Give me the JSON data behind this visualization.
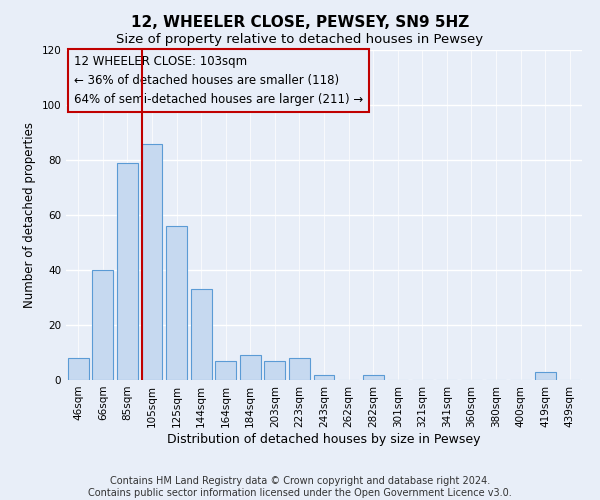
{
  "title": "12, WHEELER CLOSE, PEWSEY, SN9 5HZ",
  "subtitle": "Size of property relative to detached houses in Pewsey",
  "xlabel": "Distribution of detached houses by size in Pewsey",
  "ylabel": "Number of detached properties",
  "categories": [
    "46sqm",
    "66sqm",
    "85sqm",
    "105sqm",
    "125sqm",
    "144sqm",
    "164sqm",
    "184sqm",
    "203sqm",
    "223sqm",
    "243sqm",
    "262sqm",
    "282sqm",
    "301sqm",
    "321sqm",
    "341sqm",
    "360sqm",
    "380sqm",
    "400sqm",
    "419sqm",
    "439sqm"
  ],
  "values": [
    8,
    40,
    79,
    86,
    56,
    33,
    7,
    9,
    7,
    8,
    2,
    0,
    2,
    0,
    0,
    0,
    0,
    0,
    0,
    3,
    0
  ],
  "bar_color": "#c6d9f0",
  "bar_edge_color": "#5b9bd5",
  "vline_color": "#c00000",
  "vline_x_index": 3,
  "annotation_line1": "12 WHEELER CLOSE: 103sqm",
  "annotation_line2": "← 36% of detached houses are smaller (118)",
  "annotation_line3": "64% of semi-detached houses are larger (211) →",
  "box_edge_color": "#c00000",
  "ylim": [
    0,
    120
  ],
  "yticks": [
    0,
    20,
    40,
    60,
    80,
    100,
    120
  ],
  "footer_line1": "Contains HM Land Registry data © Crown copyright and database right 2024.",
  "footer_line2": "Contains public sector information licensed under the Open Government Licence v3.0.",
  "bg_color": "#e8eef8",
  "plot_bg_color": "#e8eef8",
  "title_fontsize": 11,
  "subtitle_fontsize": 9.5,
  "xlabel_fontsize": 9,
  "ylabel_fontsize": 8.5,
  "tick_fontsize": 7.5,
  "annotation_fontsize": 8.5,
  "footer_fontsize": 7
}
